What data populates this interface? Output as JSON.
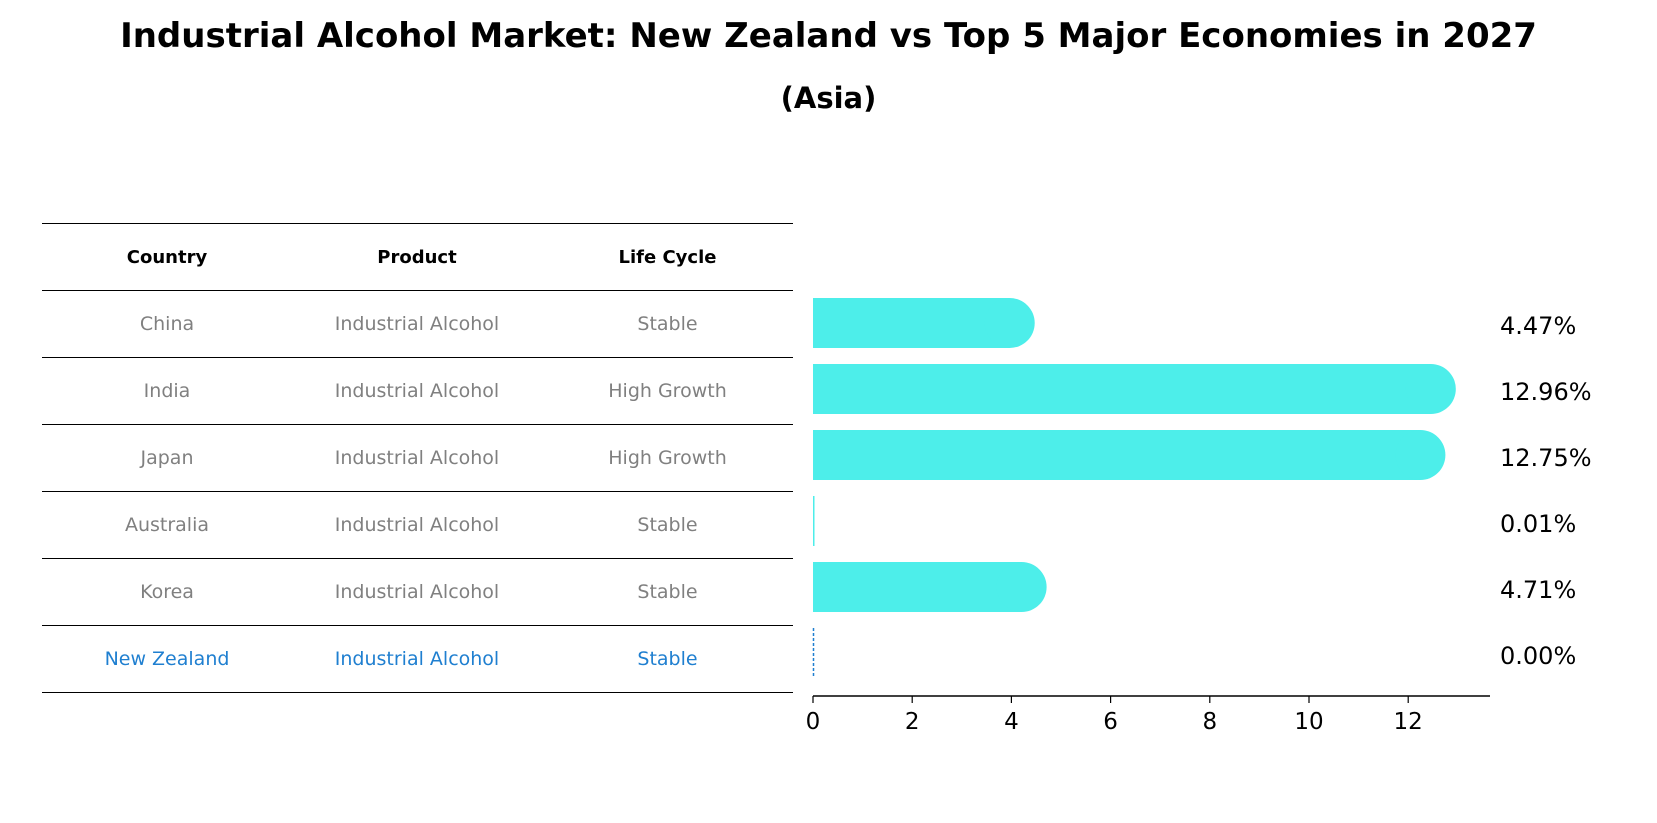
{
  "title": "Industrial Alcohol Market: New Zealand vs Top 5 Major Economies in 2027",
  "subtitle": "(Asia)",
  "table": {
    "headers": [
      "Country",
      "Product",
      "Life Cycle"
    ],
    "rows": [
      [
        "China",
        "Industrial Alcohol",
        "Stable"
      ],
      [
        "India",
        "Industrial Alcohol",
        "High Growth"
      ],
      [
        "Japan",
        "Industrial Alcohol",
        "High Growth"
      ],
      [
        "Australia",
        "Industrial Alcohol",
        "Stable"
      ],
      [
        "Korea",
        "Industrial Alcohol",
        "Stable"
      ],
      [
        "New Zealand",
        "Industrial Alcohol",
        "Stable"
      ]
    ],
    "highlight_color": "#1f7fd0",
    "muted_color": "#808080"
  },
  "chart_data": {
    "type": "bar",
    "orientation": "horizontal",
    "categories": [
      "China",
      "India",
      "Japan",
      "Australia",
      "Korea",
      "New Zealand"
    ],
    "values": [
      4.47,
      12.96,
      12.75,
      0.01,
      4.71,
      0.0
    ],
    "value_labels": [
      "4.47%",
      "12.96%",
      "12.75%",
      "0.01%",
      "4.71%",
      "0.00%"
    ],
    "bar_color": "#4deeea",
    "highlight_category": "New Zealand",
    "highlight_color": "#1f7fd0",
    "xlim": [
      0,
      13.6
    ],
    "xticks": [
      0,
      2,
      4,
      6,
      8,
      10,
      12
    ],
    "grid": false
  }
}
